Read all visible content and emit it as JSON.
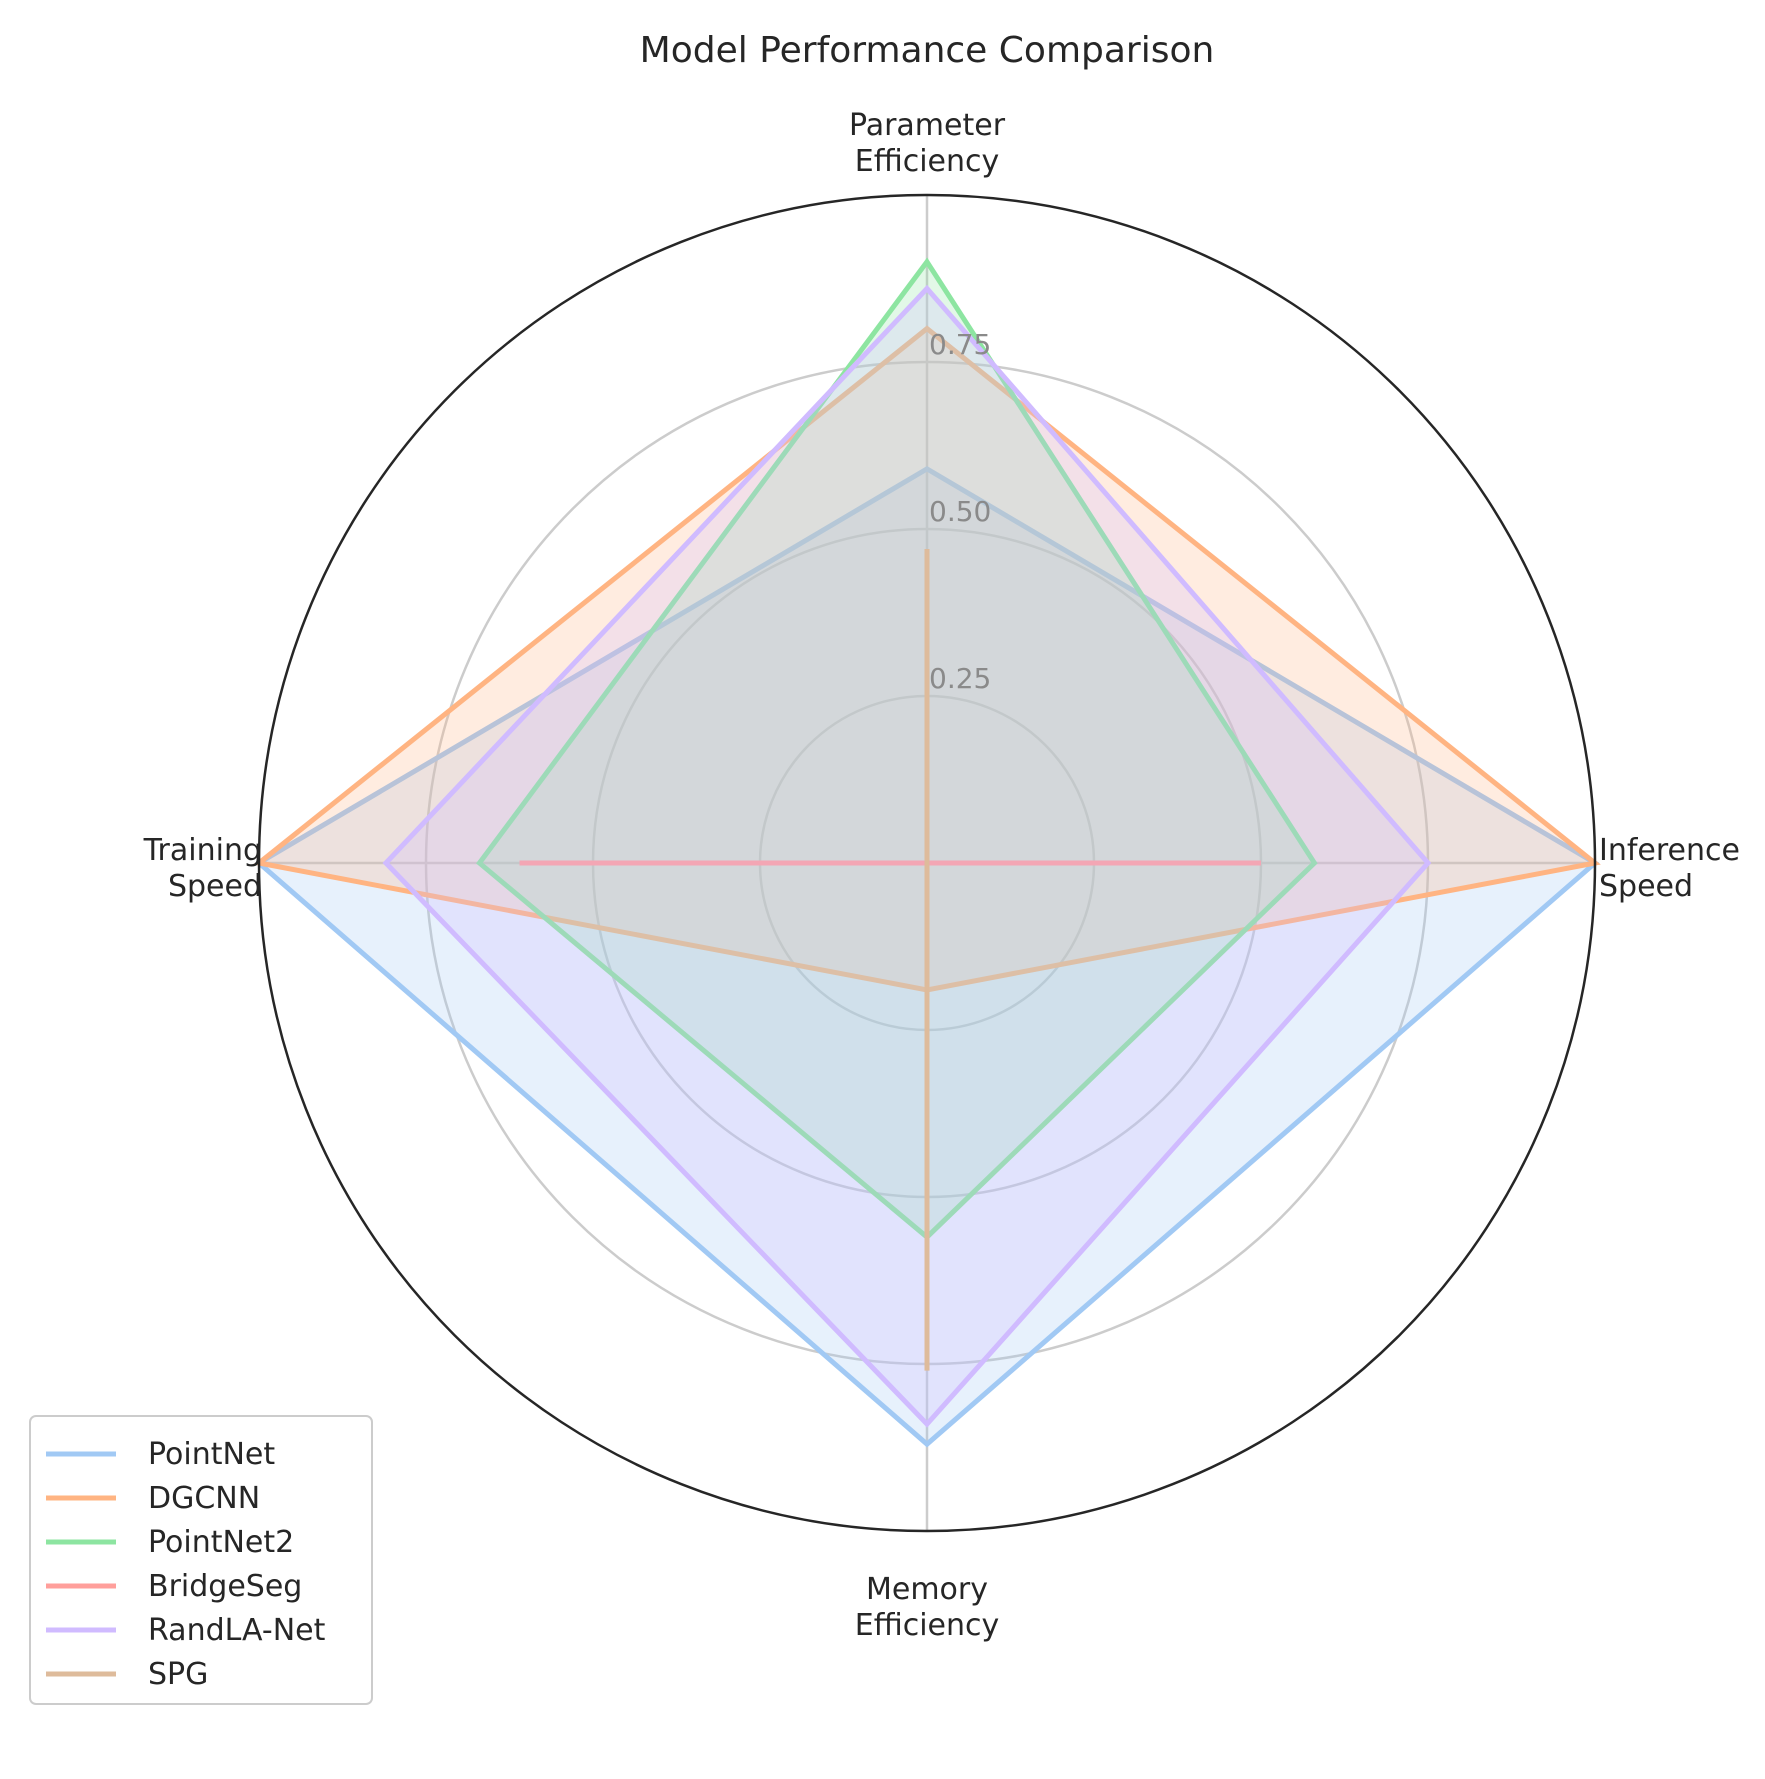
{
  "chart_data": {
    "type": "radar",
    "title": "Model Performance Comparison",
    "axes": [
      [
        "Parameter",
        "Efficiency"
      ],
      [
        "Inference",
        "Speed"
      ],
      [
        "Memory",
        "Efficiency"
      ],
      [
        "Training",
        "Speed"
      ]
    ],
    "rlim": [
      0,
      1
    ],
    "ticks": [
      0.25,
      0.5,
      0.75
    ],
    "tick_labels": [
      "0.25",
      "0.50",
      "0.75"
    ],
    "grid": true,
    "legend_position": "bottom-left",
    "series": [
      {
        "name": "PointNet",
        "color": "#a1c9f4",
        "values": [
          0.59,
          1.0,
          0.87,
          1.0
        ]
      },
      {
        "name": "DGCNN",
        "color": "#ffb482",
        "values": [
          0.8,
          1.0,
          0.19,
          1.0
        ]
      },
      {
        "name": "PointNet2",
        "color": "#8de5a1",
        "values": [
          0.9,
          0.58,
          0.56,
          0.67
        ]
      },
      {
        "name": "BridgeSeg",
        "color": "#ff9f9b",
        "values": [
          0.0,
          0.5,
          0.0,
          0.61
        ]
      },
      {
        "name": "RandLA-Net",
        "color": "#d0bbff",
        "values": [
          0.86,
          0.75,
          0.84,
          0.81
        ]
      },
      {
        "name": "SPG",
        "color": "#debb9b",
        "values": [
          0.47,
          0.0,
          0.76,
          0.0
        ]
      }
    ]
  }
}
